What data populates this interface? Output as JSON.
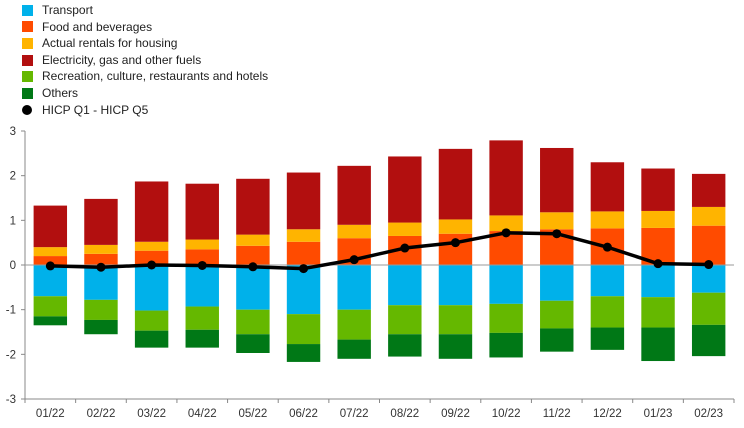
{
  "chart_data": {
    "type": "bar",
    "stacked": true,
    "categories": [
      "01/22",
      "02/22",
      "03/22",
      "04/22",
      "05/22",
      "06/22",
      "07/22",
      "08/22",
      "09/22",
      "10/22",
      "11/22",
      "12/22",
      "01/23",
      "02/23"
    ],
    "ylim": [
      -3,
      3
    ],
    "yticks": [
      3,
      2,
      1,
      0,
      -1,
      -2,
      -3
    ],
    "series": [
      {
        "name": "Transport",
        "color": "#00b1ea",
        "values": [
          -0.7,
          -0.78,
          -1.02,
          -0.93,
          -1.0,
          -1.1,
          -1.0,
          -0.9,
          -0.9,
          -0.87,
          -0.8,
          -0.7,
          -0.72,
          -0.62
        ]
      },
      {
        "name": "Food and beverages",
        "color": "#ff4b00",
        "values": [
          0.2,
          0.25,
          0.32,
          0.35,
          0.43,
          0.52,
          0.6,
          0.65,
          0.7,
          0.76,
          0.8,
          0.82,
          0.83,
          0.88
        ]
      },
      {
        "name": "Actual rentals for housing",
        "color": "#ffb400",
        "values": [
          0.2,
          0.2,
          0.2,
          0.22,
          0.25,
          0.28,
          0.3,
          0.3,
          0.32,
          0.35,
          0.38,
          0.38,
          0.38,
          0.42
        ]
      },
      {
        "name": "Electricity, gas and other fuels",
        "color": "#b20f0f",
        "values": [
          0.93,
          1.03,
          1.35,
          1.25,
          1.25,
          1.27,
          1.32,
          1.48,
          1.58,
          1.68,
          1.44,
          1.1,
          0.95,
          0.74
        ]
      },
      {
        "name": "Recreation, culture, restaurants and hotels",
        "color": "#65b800",
        "values": [
          -0.45,
          -0.45,
          -0.45,
          -0.52,
          -0.55,
          -0.67,
          -0.67,
          -0.65,
          -0.65,
          -0.65,
          -0.62,
          -0.7,
          -0.68,
          -0.72
        ]
      },
      {
        "name": "Others",
        "color": "#007816",
        "values": [
          -0.2,
          -0.32,
          -0.38,
          -0.4,
          -0.42,
          -0.4,
          -0.43,
          -0.5,
          -0.55,
          -0.55,
          -0.52,
          -0.5,
          -0.75,
          -0.7
        ]
      }
    ],
    "line": {
      "name": "HICP Q1 - HICP Q5",
      "color": "#000000",
      "values": [
        -0.02,
        -0.05,
        0.0,
        -0.01,
        -0.04,
        -0.08,
        0.12,
        0.38,
        0.5,
        0.72,
        0.7,
        0.4,
        0.03,
        0.01
      ]
    }
  }
}
